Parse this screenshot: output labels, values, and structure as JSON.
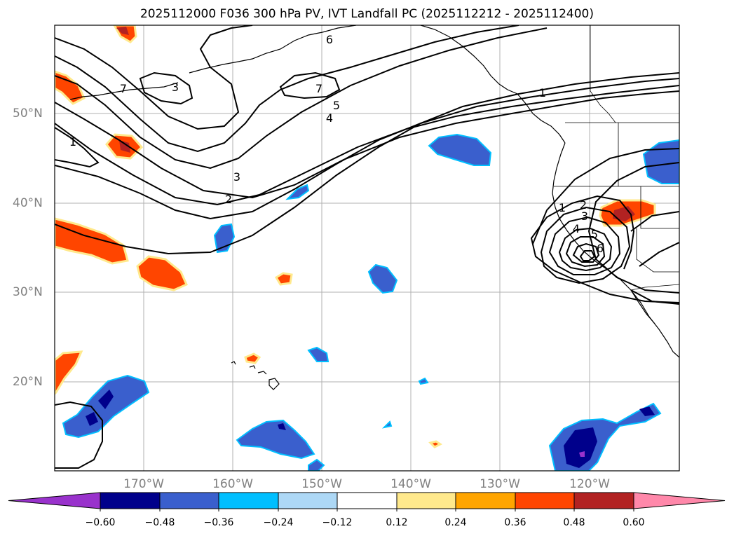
{
  "title": "2025112000 F036 300 hPa PV, IVT Landfall PC (2025112212 - 2025112400)",
  "longitude_labels": [
    "170°W",
    "160°W",
    "150°W",
    "140°W",
    "130°W",
    "120°W"
  ],
  "latitude_labels": [
    "50°N",
    "40°N",
    "30°N",
    "20°N"
  ],
  "colorbar": {
    "ticks": [
      "−0.60",
      "−0.48",
      "−0.36",
      "−0.24",
      "−0.12",
      "0.12",
      "0.24",
      "0.36",
      "0.48",
      "0.60"
    ],
    "colors": [
      "#9932cc",
      "#00008b",
      "#3a5fcd",
      "#00bfff",
      "#add8f6",
      "#ffffff",
      "#ffe98c",
      "#ffa500",
      "#ff4500",
      "#b22222",
      "#ff88aa"
    ]
  },
  "pv_contour_labels": [
    "6",
    "7",
    "3",
    "1",
    "5",
    "4",
    "3",
    "2",
    "1",
    "2",
    "3",
    "4",
    "5",
    "6",
    "1",
    "7"
  ]
}
